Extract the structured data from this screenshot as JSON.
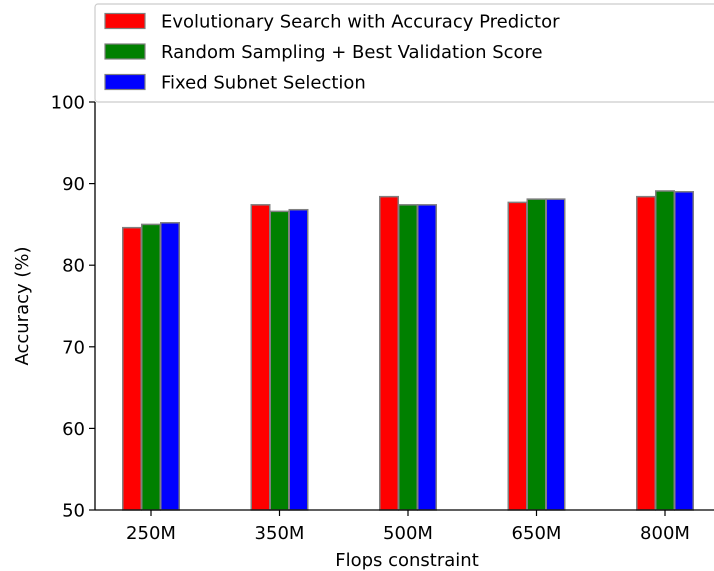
{
  "chart_data": {
    "type": "bar",
    "title": "",
    "xlabel": "Flops constraint",
    "ylabel": "Accuracy (%)",
    "categories": [
      "250M",
      "350M",
      "500M",
      "650M",
      "800M"
    ],
    "ylim": [
      50,
      100
    ],
    "yticks": [
      50,
      60,
      70,
      80,
      90,
      100
    ],
    "grid": false,
    "legend_position": "top",
    "series": [
      {
        "name": "Evolutionary Search with Accuracy Predictor",
        "color": "#ff0000",
        "values": [
          84.6,
          87.4,
          88.4,
          87.7,
          88.4
        ]
      },
      {
        "name": "Random Sampling + Best Validation Score",
        "color": "#008000",
        "values": [
          85.0,
          86.6,
          87.4,
          88.1,
          89.1
        ]
      },
      {
        "name": "Fixed Subnet Selection",
        "color": "#0000ff",
        "values": [
          85.2,
          86.8,
          87.4,
          88.1,
          89.0
        ]
      }
    ]
  }
}
